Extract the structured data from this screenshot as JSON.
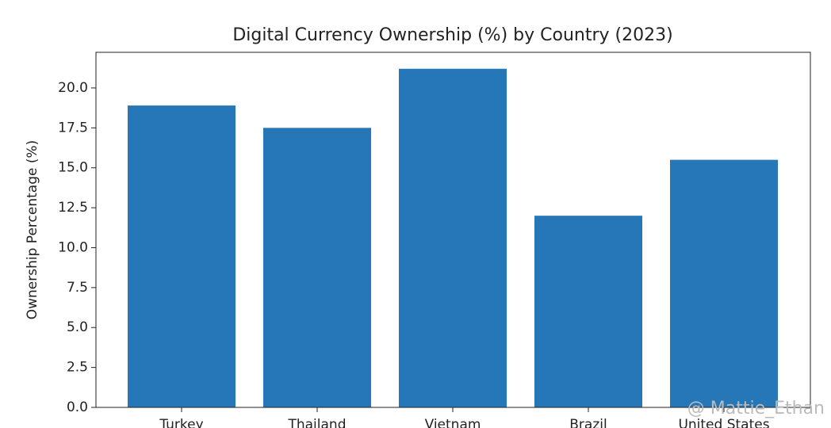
{
  "chart_data": {
    "type": "bar",
    "title": "Digital Currency Ownership (%) by Country (2023)",
    "y_label": "Ownership Percentage (%)",
    "categories": [
      "Turkey",
      "Thailand",
      "Vietnam",
      "Brazil",
      "United States"
    ],
    "values": [
      18.9,
      17.5,
      21.2,
      12.0,
      15.5
    ],
    "color": "#2677b8",
    "ylim": [
      0,
      22.23
    ],
    "yticks": [
      {
        "value": 0,
        "label": "0.0"
      },
      {
        "value": 2.5,
        "label": "2.5"
      },
      {
        "value": 5,
        "label": "5.0"
      },
      {
        "value": 7.5,
        "label": "7.5"
      },
      {
        "value": 10,
        "label": "10.0"
      },
      {
        "value": 12.5,
        "label": "12.5"
      },
      {
        "value": 15,
        "label": "15.0"
      },
      {
        "value": 17.5,
        "label": "17.5"
      },
      {
        "value": 20,
        "label": "20.0"
      }
    ],
    "grid": false,
    "watermark": "@ Mattie_Ethan"
  }
}
